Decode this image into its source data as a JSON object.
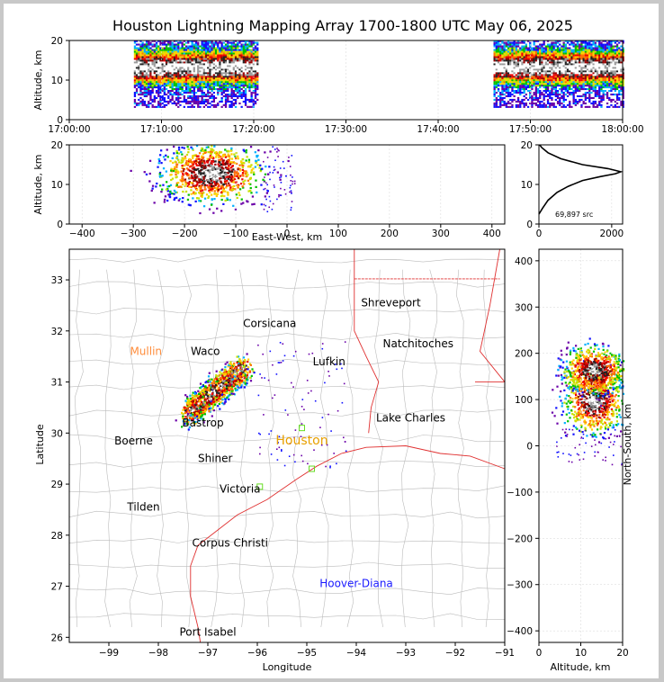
{
  "title": "Houston Lightning Mapping Array 1700-1800 UTC May 06, 2025",
  "source_count": "69,897 src",
  "colors": {
    "border": "#000000",
    "county_lines": "#bbbbbb",
    "coast_and_state_lines": "#e03030",
    "site_green": "#66dd22",
    "houston_label": "#e8a000",
    "mullin_label": "#ff8c3a",
    "hoover_label": "#1a1aff"
  },
  "chart_data": [
    {
      "type": "heatmap",
      "panel": "altitude-vs-time",
      "xlabel": "",
      "ylabel": "Altitude, km",
      "xticks": [
        "17:00:00",
        "17:10:00",
        "17:20:00",
        "17:30:00",
        "17:40:00",
        "17:50:00",
        "18:00:00"
      ],
      "yticks": [
        0,
        10,
        20
      ],
      "xlim": [
        "17:00:00",
        "18:00:00"
      ],
      "ylim": [
        0,
        20
      ],
      "grid": true,
      "activity_windows": [
        {
          "start": "17:07:00",
          "end": "17:20:30",
          "alt_min_km": 3,
          "alt_max_km": 20,
          "peak_alt_km": 13
        },
        {
          "start": "17:46:00",
          "end": "18:00:00",
          "alt_min_km": 3,
          "alt_max_km": 20,
          "peak_alt_km": 13
        }
      ]
    },
    {
      "type": "heatmap",
      "panel": "altitude-vs-east-west",
      "xlabel": "East-West, km",
      "ylabel": "Altitude, km",
      "xticks": [
        -400,
        -300,
        -200,
        -100,
        0,
        100,
        200,
        300,
        400
      ],
      "yticks": [
        0,
        10,
        20
      ],
      "xlim": [
        -425,
        425
      ],
      "ylim": [
        0,
        20
      ],
      "grid": true,
      "cores": [
        {
          "x_km": -150,
          "alt_km": 13,
          "spread_x_km": 55,
          "spread_alt_km": 4
        }
      ]
    },
    {
      "type": "line",
      "panel": "source-count-by-altitude",
      "xticks": [
        0,
        2000
      ],
      "yticks": [
        0,
        10,
        20
      ],
      "xlim": [
        0,
        2300
      ],
      "ylim": [
        0,
        20
      ],
      "grid": true,
      "series": [
        {
          "x": [
            0,
            100,
            250,
            500,
            800,
            1200,
            1700,
            2100,
            2250,
            1900,
            1200,
            600,
            250,
            80,
            20
          ],
          "y": [
            2.5,
            4,
            6,
            8,
            9.5,
            11,
            12,
            12.7,
            13.2,
            14,
            15,
            16.5,
            18,
            19.3,
            20
          ]
        }
      ]
    },
    {
      "type": "heatmap",
      "panel": "plan-view-map",
      "xlabel": "Longitude",
      "ylabel": "Latitude",
      "xticks": [
        -99,
        -98,
        -97,
        -96,
        -95,
        -94,
        -93,
        -92,
        -91
      ],
      "yticks": [
        26,
        27,
        28,
        29,
        30,
        31,
        32,
        33
      ],
      "xlim": [
        -99.8,
        -91
      ],
      "ylim": [
        25.9,
        33.6
      ],
      "cities": [
        {
          "name": "Shreveport",
          "lon": -93.3,
          "lat": 32.55
        },
        {
          "name": "Corsicana",
          "lon": -95.75,
          "lat": 32.15
        },
        {
          "name": "Mullin",
          "lon": -98.25,
          "lat": 31.6
        },
        {
          "name": "Waco",
          "lon": -97.05,
          "lat": 31.6
        },
        {
          "name": "Natchitoches",
          "lon": -92.75,
          "lat": 31.75
        },
        {
          "name": "Lufkin",
          "lon": -94.55,
          "lat": 31.4
        },
        {
          "name": "Bastrop",
          "lon": -97.1,
          "lat": 30.2
        },
        {
          "name": "Lake Charles",
          "lon": -92.9,
          "lat": 30.3
        },
        {
          "name": "Boerne",
          "lon": -98.5,
          "lat": 29.85
        },
        {
          "name": "Houston",
          "lon": -95.1,
          "lat": 29.85
        },
        {
          "name": "Shiner",
          "lon": -96.85,
          "lat": 29.5
        },
        {
          "name": "Victoria",
          "lon": -96.35,
          "lat": 28.9
        },
        {
          "name": "Tilden",
          "lon": -98.3,
          "lat": 28.55
        },
        {
          "name": "Corpus Christi",
          "lon": -96.55,
          "lat": 27.85
        },
        {
          "name": "Hoover-Diana",
          "lon": -94.0,
          "lat": 27.05
        },
        {
          "name": "Port Isabel",
          "lon": -97.0,
          "lat": 26.1
        }
      ],
      "storm_core": {
        "lon_start": -97.4,
        "lat_start": 30.4,
        "lon_end": -96.3,
        "lat_end": 31.3
      }
    },
    {
      "type": "heatmap",
      "panel": "north-south-vs-altitude",
      "xlabel": "Altitude, km",
      "ylabel": "North-South, km",
      "xticks": [
        0,
        10,
        20
      ],
      "yticks": [
        -400,
        -300,
        -200,
        -100,
        0,
        100,
        200,
        300,
        400
      ],
      "xlim": [
        0,
        20
      ],
      "ylim": [
        -425,
        425
      ],
      "cores": [
        {
          "alt_km": 13,
          "y_km": 100,
          "spread_alt_km": 4,
          "spread_y_km": 40
        },
        {
          "alt_km": 13,
          "y_km": 165,
          "spread_alt_km": 4,
          "spread_y_km": 28
        }
      ]
    }
  ]
}
